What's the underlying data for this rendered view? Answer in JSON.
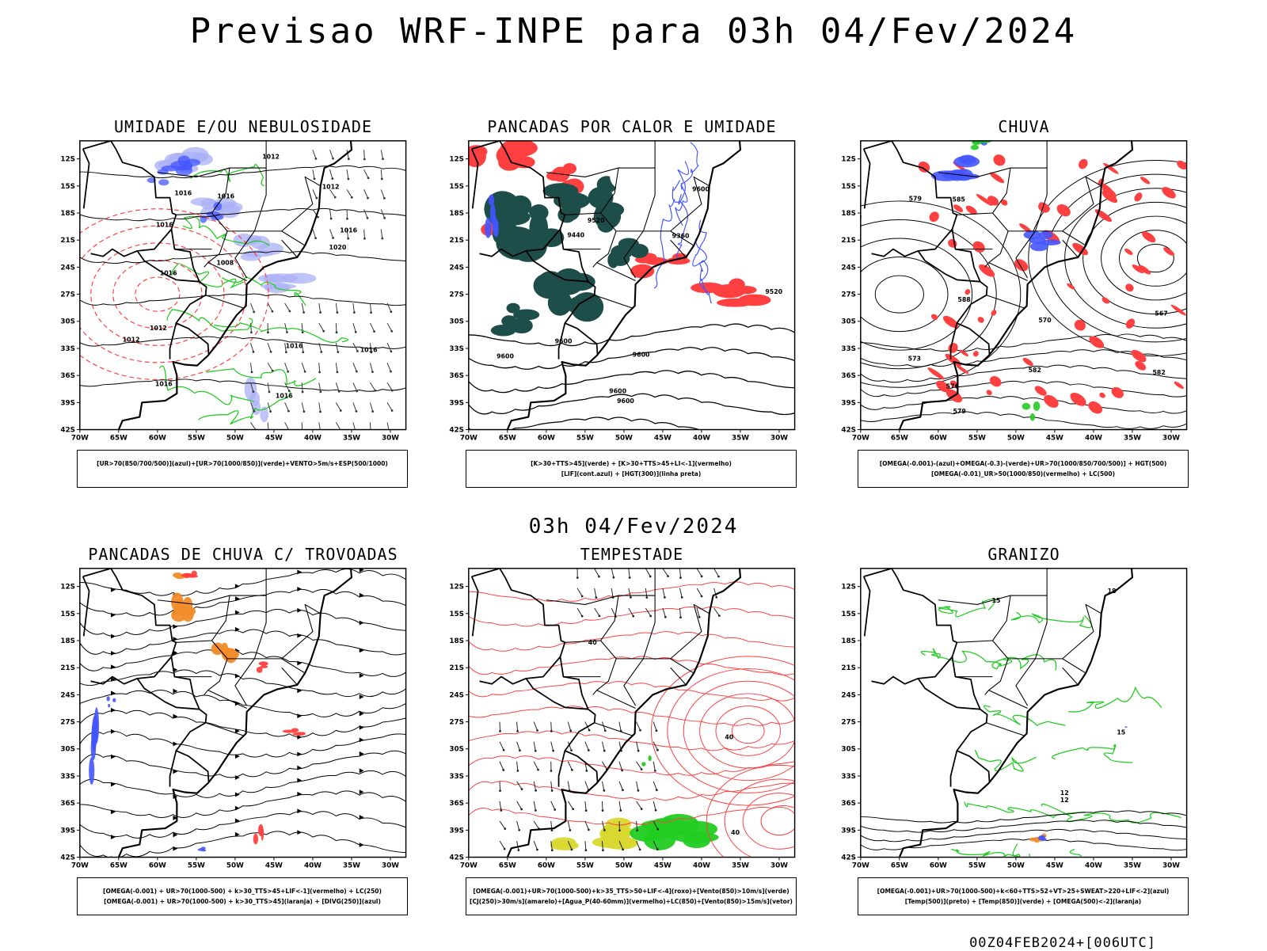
{
  "title": "Previsao WRF-INPE  para 03h 04/Fev/2024",
  "mid_time": "03h 04/Fev/2024",
  "footer": "00Z04FEB2024+[006UTC]",
  "colors": {
    "blue": "#4455ff",
    "light_blue": "#aab0f5",
    "green": "#22cc22",
    "red": "#ff4040",
    "orange": "#f28c2a",
    "yellow": "#d8d830",
    "dark_teal": "#1e4e4a"
  },
  "axes": {
    "lat_labels": [
      "12S",
      "15S",
      "18S",
      "21S",
      "24S",
      "27S",
      "30S",
      "33S",
      "36S",
      "39S",
      "42S"
    ],
    "lon_labels": [
      "70W",
      "65W",
      "60W",
      "55W",
      "50W",
      "45W",
      "40W",
      "35W",
      "30W"
    ]
  },
  "panels": [
    {
      "title": "UMIDADE E/OU NEBULOSIDADE",
      "legend": [
        "[UR>70(850/700/500)](azul)+[UR>70(1000/850)](verde)+VENTO>5m/s+ESP(500/1000)"
      ],
      "contour_labels": [
        "1016",
        "1016",
        "1012",
        "1016",
        "1016",
        "1016",
        "1008",
        "1012",
        "1016",
        "1012",
        "1016",
        "1016",
        "1020",
        "1012",
        "1016"
      ]
    },
    {
      "title": "PANCADAS POR CALOR E UMIDADE",
      "legend": [
        "[K>30+TTS>45](verde)  +  [K>30+TTS>45+LI<-1](vermelho)",
        "[LIF](cont.azul)  +  [HGT(300)](linha preta)"
      ],
      "contour_labels": [
        "9600",
        "9600",
        "9600",
        "9600",
        "9600",
        "9600",
        "9520",
        "9440",
        "9360",
        "9520"
      ]
    },
    {
      "title": "CHUVA",
      "legend": [
        "[OMEGA(-0.001)-(azul)+OMEGA(-0.3)-(verde)+UR>70(1000/850/700/500)]  +  HGT(500)",
        "[OMEGA(-0.01)_UR>50(1000/850)(vermelho)  +  LC(500)"
      ],
      "contour_labels": [
        "588",
        "585",
        "582",
        "579",
        "576",
        "573",
        "570",
        "567",
        "579",
        "582"
      ]
    },
    {
      "title": "PANCADAS DE CHUVA C/ TROVOADAS",
      "legend": [
        "[OMEGA(-0.001)  +  UR>70(1000-500)  +  k>30_TTS>45+LIF<-1](vermelho)  +  LC(250)",
        "[OMEGA(-0.001)  +  UR>70(1000-500)  +  k>30_TTS>45](laranja)  +  [DIVG(250)](azul)"
      ],
      "contour_labels": []
    },
    {
      "title": "TEMPESTADE",
      "legend": [
        "[OMEGA(-0.001)+UR>70(1000-500)+k>35_TTS>50+LIF<-4](roxo)+[Vento(850)>10m/s](verde)",
        "[CJ(250)>30m/s](amarelo)+[Agua_P(40-60mm)](vermelho)+LC(850)+[Vento(850)>15m/s](vetor)"
      ],
      "contour_labels": [
        "40",
        "40",
        "40"
      ]
    },
    {
      "title": "GRANIZO",
      "legend": [
        "[OMEGA(-0.001)+UR>70(1000-500)+k<60+TTS>52+VT>25+SWEAT>220+LIF<-2](azul)",
        "[Temp(500)](preto)  +  [Temp(850)](verde)  +  [OMEGA(500)<-2](laranja)"
      ],
      "contour_labels": [
        "15",
        "12",
        "18",
        "15",
        "12"
      ]
    }
  ]
}
